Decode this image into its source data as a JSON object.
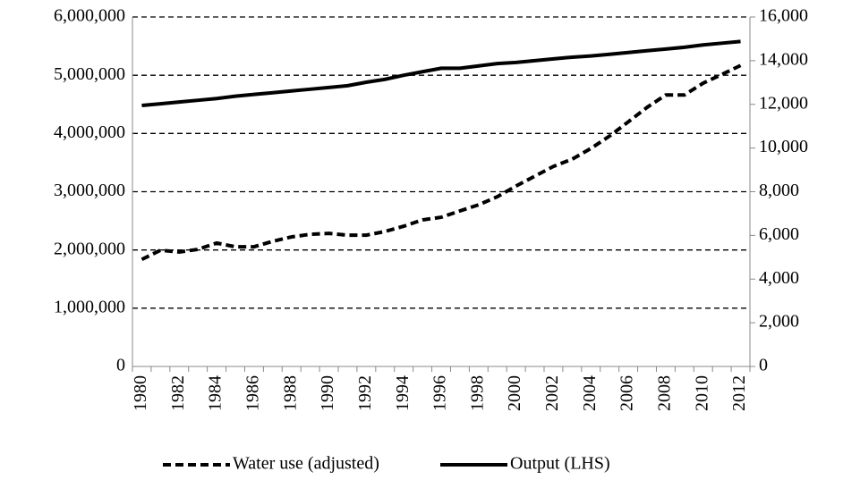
{
  "chart_data": {
    "type": "line",
    "categories": [
      "1980",
      null,
      "1982",
      null,
      "1984",
      null,
      "1986",
      null,
      "1988",
      null,
      "1990",
      null,
      "1992",
      null,
      "1994",
      null,
      "1996",
      null,
      "1998",
      null,
      "2000",
      null,
      "2002",
      null,
      "2004",
      null,
      "2006",
      null,
      "2008",
      null,
      "2010",
      null,
      "2012"
    ],
    "series": [
      {
        "name": "Water use (adjusted)",
        "color": "#000000",
        "dash": true,
        "axis": "y2",
        "values": [
          4900,
          5320,
          5240,
          5360,
          5650,
          5480,
          5480,
          5730,
          5930,
          6050,
          6090,
          6010,
          6010,
          6180,
          6420,
          6710,
          6830,
          7120,
          7400,
          7770,
          8260,
          8710,
          9160,
          9490,
          9980,
          10550,
          11200,
          11860,
          12430,
          12430,
          12970,
          13370,
          13780
        ]
      },
      {
        "name": "Output (LHS)",
        "color": "#000000",
        "dash": false,
        "values": [
          4480000,
          4510000,
          4540000,
          4570000,
          4600000,
          4640000,
          4670000,
          4700000,
          4730000,
          4760000,
          4790000,
          4820000,
          4880000,
          4930000,
          5000000,
          5060000,
          5120000,
          5120000,
          5160000,
          5200000,
          5220000,
          5250000,
          5280000,
          5310000,
          5330000,
          5360000,
          5390000,
          5420000,
          5450000,
          5480000,
          5520000,
          5550000,
          5580000
        ]
      }
    ],
    "ylim": [
      0,
      6000000
    ],
    "yticks": [
      0,
      {
        "value": 1000000,
        "label": "1,000,000"
      },
      {
        "value": 2000000,
        "label": "2,000,000"
      },
      {
        "value": 3000000,
        "label": "3,000,000"
      },
      {
        "value": 4000000,
        "label": "4,000,000"
      },
      {
        "value": 5000000,
        "label": "5,000,000"
      },
      {
        "value": 6000000,
        "label": "6,000,000"
      }
    ],
    "y2lim": [
      0,
      16000
    ],
    "y2ticks": [
      0,
      {
        "value": 2000,
        "label": "2,000"
      },
      {
        "value": 4000,
        "label": "4,000"
      },
      {
        "value": 6000,
        "label": "6,000"
      },
      {
        "value": 8000,
        "label": "8,000"
      },
      {
        "value": 10000,
        "label": "10,000"
      },
      {
        "value": 12000,
        "label": "12,000"
      },
      {
        "value": 14000,
        "label": "14,000"
      },
      {
        "value": 16000,
        "label": "16,000"
      }
    ],
    "grid": true,
    "legend": "bottom"
  }
}
